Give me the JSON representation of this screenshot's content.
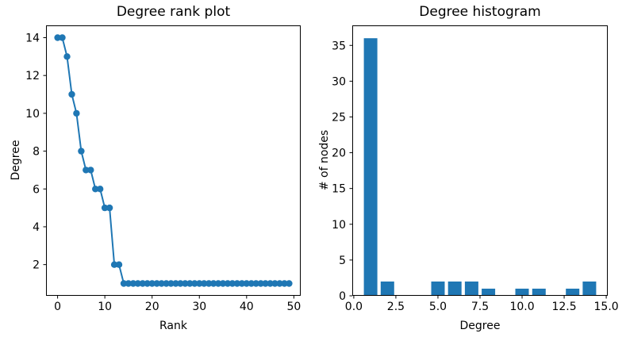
{
  "colors": {
    "series": "#1f77b4",
    "text": "#000000",
    "background": "#ffffff"
  },
  "chart_data": [
    {
      "id": "degree-rank-plot",
      "type": "line",
      "title": "Degree rank plot",
      "xlabel": "Rank",
      "ylabel": "Degree",
      "x": [
        0,
        1,
        2,
        3,
        4,
        5,
        6,
        7,
        8,
        9,
        10,
        11,
        12,
        13,
        14,
        15,
        16,
        17,
        18,
        19,
        20,
        21,
        22,
        23,
        24,
        25,
        26,
        27,
        28,
        29,
        30,
        31,
        32,
        33,
        34,
        35,
        36,
        37,
        38,
        39,
        40,
        41,
        42,
        43,
        44,
        45,
        46,
        47,
        48,
        49
      ],
      "y": [
        14,
        14,
        13,
        11,
        10,
        8,
        7,
        7,
        6,
        6,
        5,
        5,
        2,
        2,
        1,
        1,
        1,
        1,
        1,
        1,
        1,
        1,
        1,
        1,
        1,
        1,
        1,
        1,
        1,
        1,
        1,
        1,
        1,
        1,
        1,
        1,
        1,
        1,
        1,
        1,
        1,
        1,
        1,
        1,
        1,
        1,
        1,
        1,
        1,
        1
      ],
      "xlim": [
        -2.45,
        51.45
      ],
      "ylim": [
        0.35,
        14.65
      ],
      "xticks": [
        0,
        10,
        20,
        30,
        40,
        50
      ],
      "xtick_labels": [
        "0",
        "10",
        "20",
        "30",
        "40",
        "50"
      ],
      "yticks": [
        2,
        4,
        6,
        8,
        10,
        12,
        14
      ],
      "ytick_labels": [
        "2",
        "4",
        "6",
        "8",
        "10",
        "12",
        "14"
      ],
      "grid": false,
      "legend": null,
      "color": "#1f77b4",
      "marker": "circle",
      "marker_radius": 4.2,
      "line_width": 2
    },
    {
      "id": "degree-histogram",
      "type": "bar",
      "title": "Degree histogram",
      "xlabel": "Degree",
      "ylabel": "# of nodes",
      "categories": [
        1,
        2,
        5,
        6,
        7,
        8,
        10,
        11,
        13,
        14
      ],
      "values": [
        36,
        2,
        2,
        2,
        2,
        1,
        1,
        1,
        1,
        2
      ],
      "bar_width": 0.8,
      "xlim": [
        -0.09,
        15.09
      ],
      "ylim": [
        0,
        37.8
      ],
      "xticks": [
        0,
        2.5,
        5,
        7.5,
        10,
        12.5,
        15
      ],
      "xtick_labels": [
        "0.0",
        "2.5",
        "5.0",
        "7.5",
        "10.0",
        "12.5",
        "15.0"
      ],
      "yticks": [
        0,
        5,
        10,
        15,
        20,
        25,
        30,
        35
      ],
      "ytick_labels": [
        "0",
        "5",
        "10",
        "15",
        "20",
        "25",
        "30",
        "35"
      ],
      "grid": false,
      "legend": null,
      "color": "#1f77b4"
    }
  ]
}
